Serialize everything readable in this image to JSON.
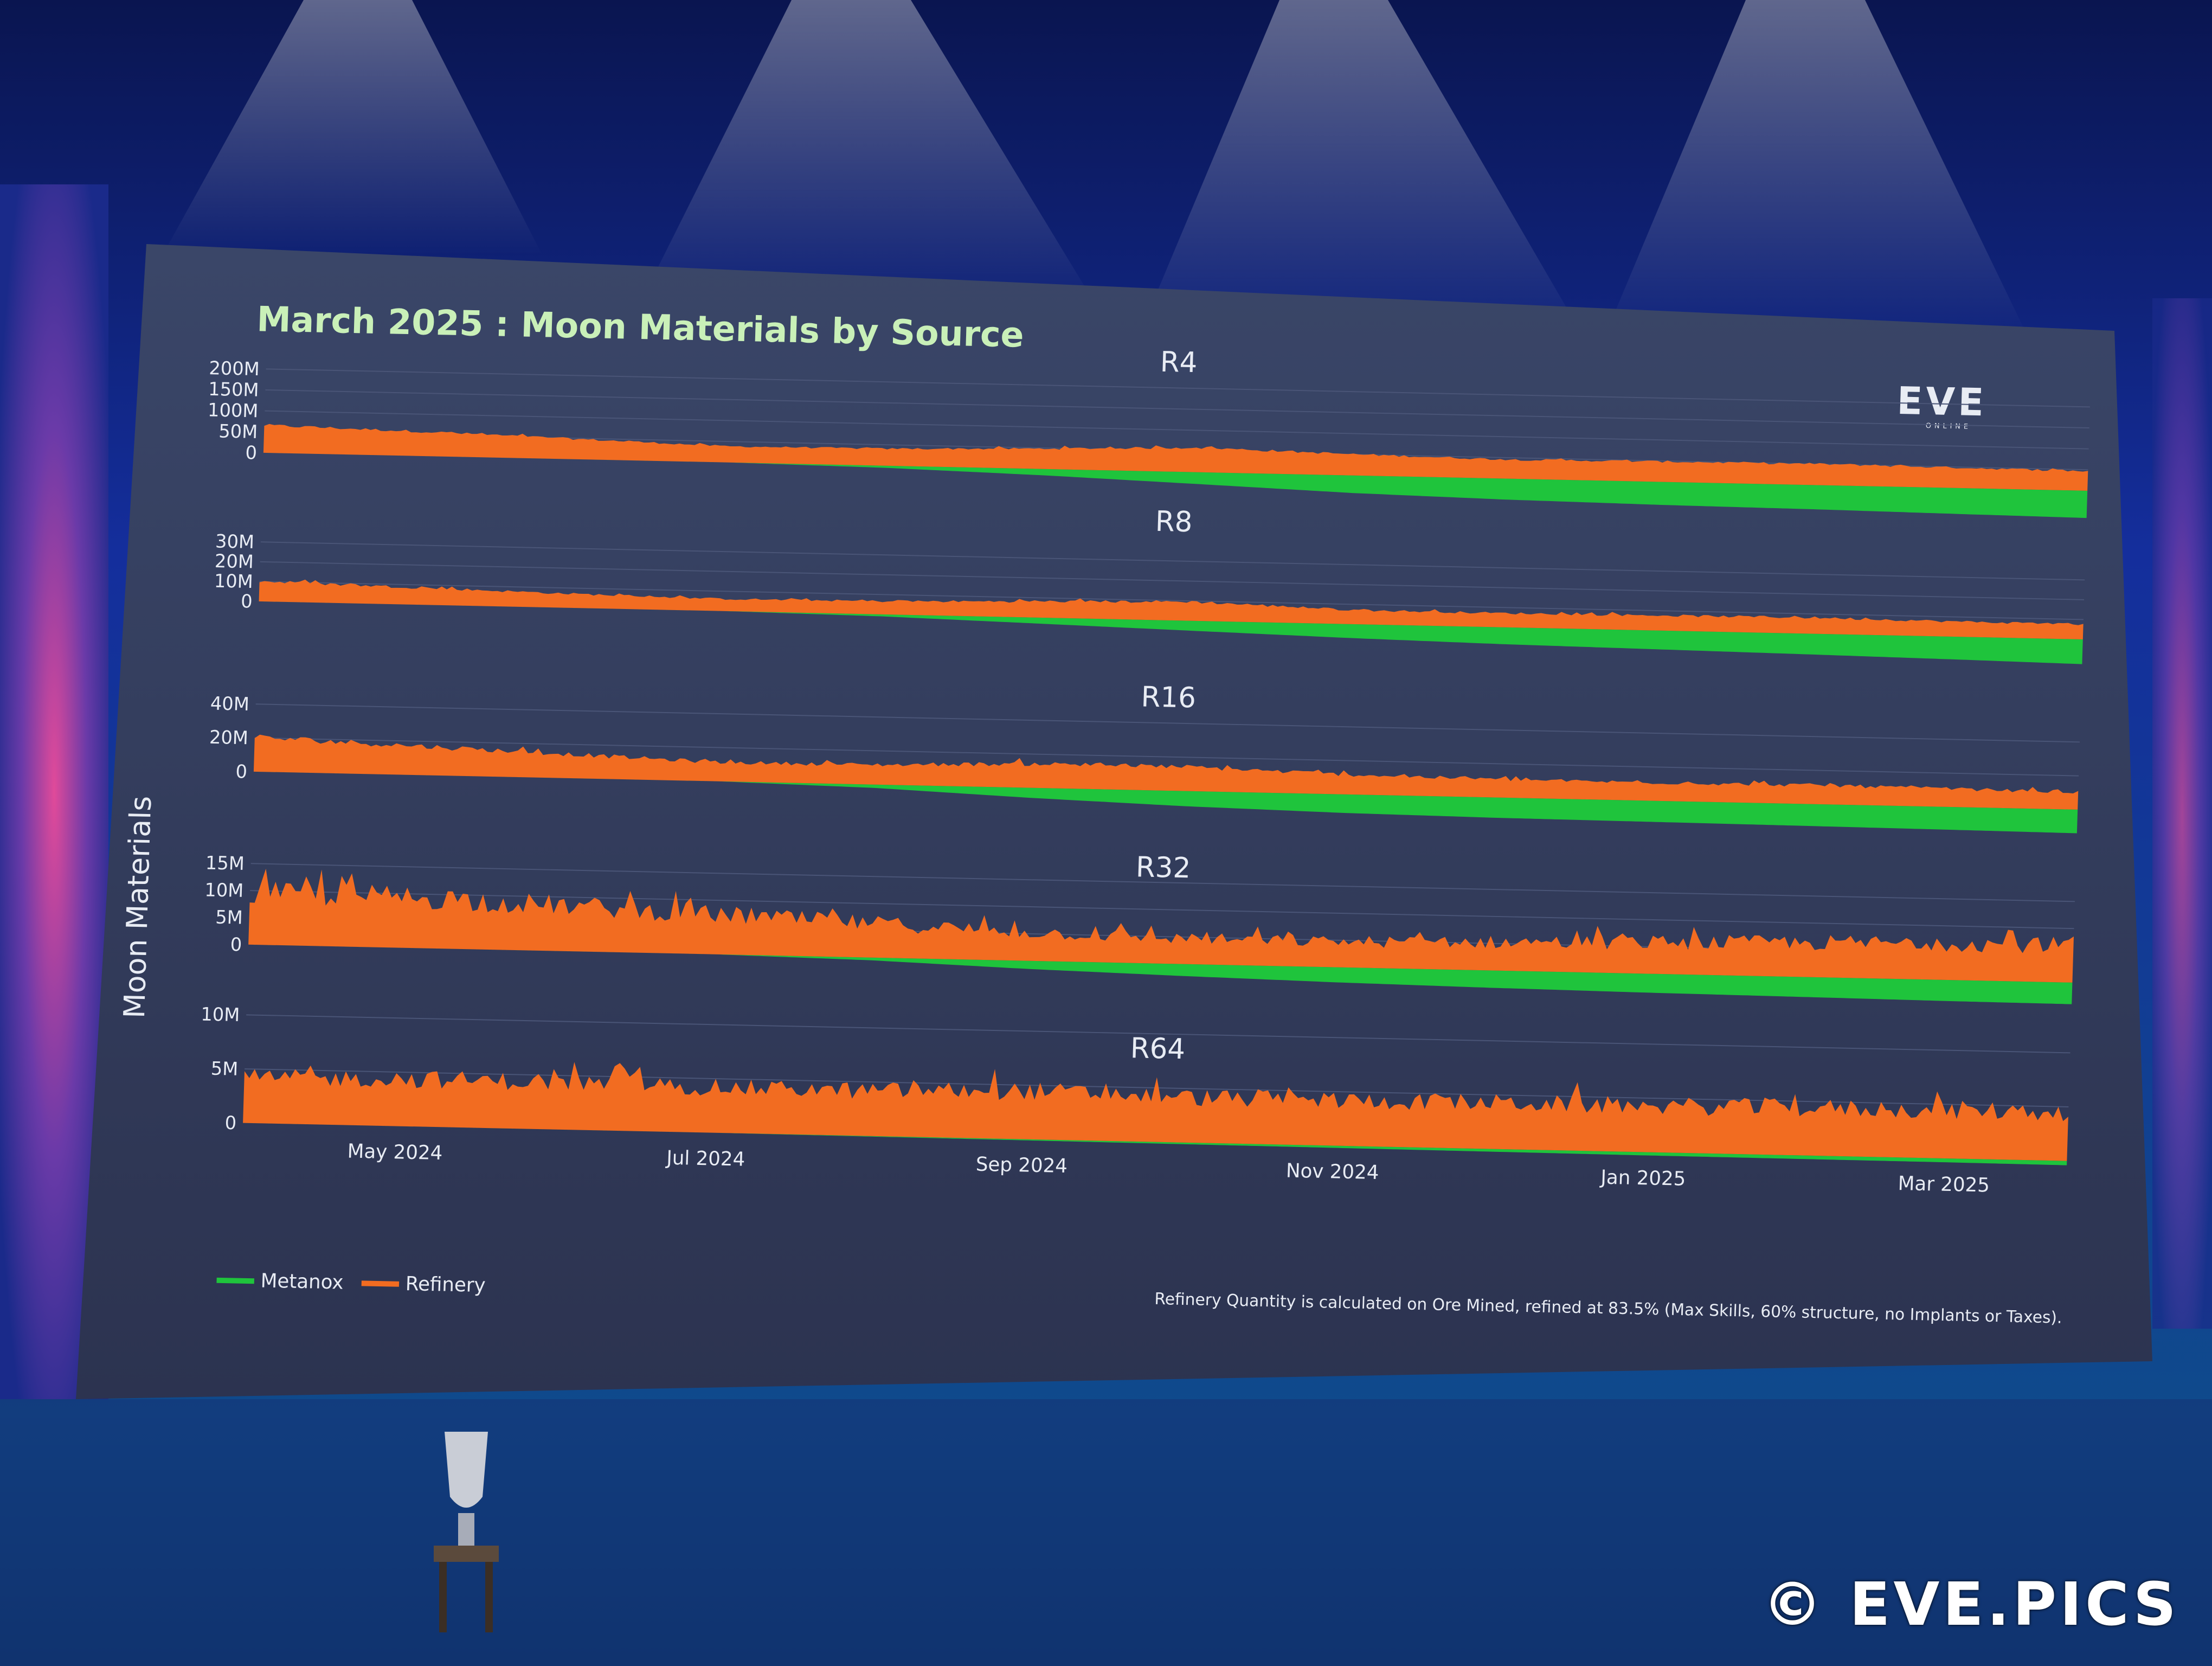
{
  "slide": {
    "title": "March 2025 : Moon Materials by Source",
    "y_axis_label": "Moon Materials",
    "logo_text": "EVE",
    "logo_subtext": "ONLINE",
    "footnote": "Refinery Quantity is calculated on Ore Mined, refined at 83.5% (Max Skills, 60% structure, no Implants or Taxes)."
  },
  "watermark": {
    "text": "© EVE.PICS"
  },
  "colors": {
    "metanox": "#1fc43c",
    "refinery": "#f26c21",
    "slide_bg": "#323955",
    "text": "#e8ecf4",
    "title": "#c9f0b8"
  },
  "legend": [
    {
      "label": "Metanox",
      "color": "#1fc43c"
    },
    {
      "label": "Refinery",
      "color": "#f26c21"
    }
  ],
  "x_axis": {
    "start": "2024-04-01",
    "end": "2025-03-25",
    "ticks": [
      {
        "date": "2024-05-01",
        "label": "May 2024"
      },
      {
        "date": "2024-07-01",
        "label": "Jul 2024"
      },
      {
        "date": "2024-09-01",
        "label": "Sep 2024"
      },
      {
        "date": "2024-11-01",
        "label": "Nov 2024"
      },
      {
        "date": "2025-01-01",
        "label": "Jan 2025"
      },
      {
        "date": "2025-03-01",
        "label": "Mar 2025"
      }
    ]
  },
  "chart_data": [
    {
      "type": "area",
      "stacked": true,
      "title": "R4",
      "ylim": [
        0,
        200000000
      ],
      "y_ticks": [
        {
          "v": 0,
          "label": "0"
        },
        {
          "v": 50000000,
          "label": "50M"
        },
        {
          "v": 100000000,
          "label": "100M"
        },
        {
          "v": 150000000,
          "label": "150M"
        },
        {
          "v": 200000000,
          "label": "200M"
        }
      ],
      "x": [
        "2024-04-01",
        "2024-05-01",
        "2024-06-01",
        "2024-07-01",
        "2024-08-01",
        "2024-09-01",
        "2024-10-01",
        "2024-11-01",
        "2024-12-01",
        "2025-01-01",
        "2025-02-01",
        "2025-03-01",
        "2025-03-25"
      ],
      "series": [
        {
          "name": "Metanox",
          "values": [
            0,
            0,
            0,
            0,
            5000000,
            15000000,
            28000000,
            42000000,
            50000000,
            55000000,
            58000000,
            62000000,
            65000000
          ]
        },
        {
          "name": "Refinery",
          "values": [
            65000000,
            58000000,
            48000000,
            38000000,
            40000000,
            48000000,
            58000000,
            50000000,
            45000000,
            48000000,
            50000000,
            48000000,
            46000000
          ]
        }
      ]
    },
    {
      "type": "area",
      "stacked": true,
      "title": "R8",
      "ylim": [
        0,
        30000000
      ],
      "y_ticks": [
        {
          "v": 0,
          "label": "0"
        },
        {
          "v": 10000000,
          "label": "10M"
        },
        {
          "v": 20000000,
          "label": "20M"
        },
        {
          "v": 30000000,
          "label": "30M"
        }
      ],
      "x": [
        "2024-04-01",
        "2024-05-01",
        "2024-06-01",
        "2024-07-01",
        "2024-08-01",
        "2024-09-01",
        "2024-10-01",
        "2024-11-01",
        "2024-12-01",
        "2025-01-01",
        "2025-02-01",
        "2025-03-01",
        "2025-03-25"
      ],
      "series": [
        {
          "name": "Metanox",
          "values": [
            0,
            0,
            0,
            0,
            1000000,
            3000000,
            5000000,
            7000000,
            8500000,
            9500000,
            10500000,
            11500000,
            12500000
          ]
        },
        {
          "name": "Refinery",
          "values": [
            10000000,
            8500000,
            7000000,
            6000000,
            6500000,
            8000000,
            9500000,
            7000000,
            7000000,
            7500000,
            8000000,
            7500000,
            7500000
          ]
        }
      ]
    },
    {
      "type": "area",
      "stacked": true,
      "title": "R16",
      "ylim": [
        0,
        40000000
      ],
      "y_ticks": [
        {
          "v": 0,
          "label": "0"
        },
        {
          "v": 20000000,
          "label": "20M"
        },
        {
          "v": 40000000,
          "label": "40M"
        }
      ],
      "x": [
        "2024-04-01",
        "2024-05-01",
        "2024-06-01",
        "2024-07-01",
        "2024-08-01",
        "2024-09-01",
        "2024-10-01",
        "2024-11-01",
        "2024-12-01",
        "2025-01-01",
        "2025-02-01",
        "2025-03-01",
        "2025-03-25"
      ],
      "series": [
        {
          "name": "Metanox",
          "values": [
            0,
            0,
            0,
            0,
            2000000,
            6000000,
            9000000,
            11000000,
            12000000,
            12500000,
            13000000,
            13500000,
            14000000
          ]
        },
        {
          "name": "Refinery",
          "values": [
            20000000,
            17000000,
            14000000,
            11000000,
            11500000,
            14000000,
            14000000,
            11500000,
            10500000,
            10500000,
            11000000,
            10500000,
            10000000
          ]
        }
      ]
    },
    {
      "type": "area",
      "stacked": true,
      "title": "R32",
      "ylim": [
        0,
        15000000
      ],
      "y_ticks": [
        {
          "v": 0,
          "label": "0"
        },
        {
          "v": 5000000,
          "label": "5M"
        },
        {
          "v": 10000000,
          "label": "10M"
        },
        {
          "v": 15000000,
          "label": "15M"
        }
      ],
      "x": [
        "2024-04-01",
        "2024-05-01",
        "2024-06-01",
        "2024-07-01",
        "2024-08-01",
        "2024-09-01",
        "2024-10-01",
        "2024-11-01",
        "2024-12-01",
        "2025-01-01",
        "2025-02-01",
        "2025-03-01",
        "2025-03-25"
      ],
      "series": [
        {
          "name": "Metanox",
          "values": [
            0,
            0,
            0,
            0,
            500000,
            1500000,
            2200000,
            2800000,
            3200000,
            3500000,
            3700000,
            3900000,
            4000000
          ]
        },
        {
          "name": "Refinery",
          "values": [
            9000000,
            9000000,
            8000000,
            7000000,
            6000000,
            5000000,
            4500000,
            4500000,
            5000000,
            5500000,
            6000000,
            6500000,
            6500000
          ]
        }
      ]
    },
    {
      "type": "area",
      "stacked": true,
      "title": "R64",
      "ylim": [
        0,
        10000000
      ],
      "y_ticks": [
        {
          "v": 0,
          "label": "0"
        },
        {
          "v": 5000000,
          "label": "5M"
        },
        {
          "v": 10000000,
          "label": "10M"
        }
      ],
      "x": [
        "2024-04-01",
        "2024-05-01",
        "2024-06-01",
        "2024-07-01",
        "2024-08-01",
        "2024-09-01",
        "2024-10-01",
        "2024-11-01",
        "2024-12-01",
        "2025-01-01",
        "2025-02-01",
        "2025-03-01",
        "2025-03-25"
      ],
      "series": [
        {
          "name": "Metanox",
          "values": [
            0,
            0,
            0,
            0,
            50000,
            100000,
            150000,
            200000,
            250000,
            300000,
            330000,
            360000,
            400000
          ]
        },
        {
          "name": "Refinery",
          "values": [
            4000000,
            4200000,
            4200000,
            4000000,
            4000000,
            4300000,
            4000000,
            4000000,
            4100000,
            4100000,
            4200000,
            4300000,
            4300000
          ]
        }
      ]
    }
  ]
}
